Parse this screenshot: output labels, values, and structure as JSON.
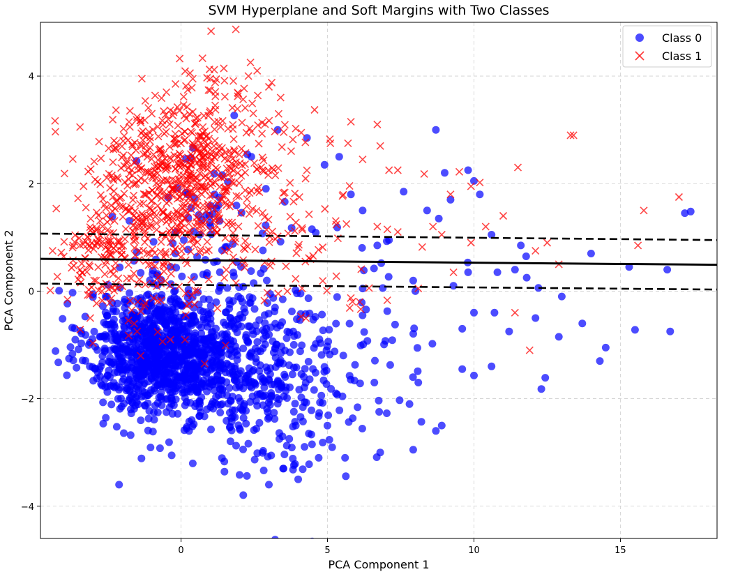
{
  "chart_data": {
    "type": "scatter",
    "title": "SVM Hyperplane and Soft Margins with Two Classes",
    "xlabel": "PCA Component 1",
    "ylabel": "PCA Component 2",
    "xlim": [
      -4.8,
      18.3
    ],
    "ylim": [
      -4.6,
      5.0
    ],
    "xticks": [
      0,
      5,
      10,
      15
    ],
    "yticks": [
      -4,
      -2,
      0,
      2,
      4
    ],
    "grid": true,
    "legend_position": "top-right",
    "hyperplane": {
      "x": [
        -4.8,
        18.3
      ],
      "y": [
        0.6,
        0.49
      ]
    },
    "margins": [
      {
        "x": [
          -4.8,
          18.3
        ],
        "y": [
          1.07,
          0.95
        ]
      },
      {
        "x": [
          -4.8,
          18.3
        ],
        "y": [
          0.14,
          0.03
        ]
      }
    ],
    "series": [
      {
        "name": "Class 0",
        "marker": "circle",
        "color": "#0000ff",
        "clusters": [
          {
            "center": [
              -0.8,
              -1.1
            ],
            "spread": [
              1.2,
              0.55
            ],
            "count": 900
          },
          {
            "center": [
              1.5,
              -1.4
            ],
            "spread": [
              1.3,
              0.75
            ],
            "count": 400
          },
          {
            "center": [
              3.8,
              -1.9
            ],
            "spread": [
              1.2,
              0.9
            ],
            "count": 140
          },
          {
            "center": [
              6.5,
              -0.8
            ],
            "spread": [
              2.2,
              1.0
            ],
            "count": 60
          },
          {
            "center": [
              0.8,
              0.8
            ],
            "spread": [
              1.2,
              0.9
            ],
            "count": 80
          }
        ],
        "points": [
          [
            8.7,
            3.0
          ],
          [
            17.2,
            1.45
          ],
          [
            17.4,
            1.48
          ],
          [
            16.6,
            0.4
          ],
          [
            15.3,
            0.45
          ],
          [
            14.0,
            0.7
          ],
          [
            13.0,
            -0.1
          ],
          [
            14.5,
            -1.05
          ],
          [
            14.3,
            -1.3
          ],
          [
            15.5,
            -0.72
          ],
          [
            16.7,
            -0.75
          ],
          [
            12.9,
            -0.85
          ],
          [
            12.1,
            -0.5
          ],
          [
            12.3,
            -1.82
          ],
          [
            13.7,
            -0.6
          ],
          [
            11.8,
            0.25
          ],
          [
            11.6,
            0.85
          ],
          [
            10.6,
            1.05
          ],
          [
            10.0,
            2.05
          ],
          [
            9.8,
            2.25
          ],
          [
            10.2,
            1.8
          ],
          [
            9.0,
            2.2
          ],
          [
            9.2,
            1.7
          ],
          [
            8.8,
            1.35
          ],
          [
            8.4,
            1.5
          ],
          [
            7.6,
            1.85
          ],
          [
            6.2,
            1.5
          ],
          [
            5.8,
            1.8
          ],
          [
            5.4,
            2.5
          ],
          [
            4.9,
            2.35
          ],
          [
            4.3,
            2.85
          ],
          [
            3.3,
            3.0
          ],
          [
            2.4,
            2.5
          ],
          [
            6.7,
            0.85
          ],
          [
            7.1,
            0.95
          ],
          [
            9.8,
            0.35
          ],
          [
            10.8,
            0.35
          ],
          [
            11.4,
            0.4
          ],
          [
            12.2,
            0.06
          ],
          [
            9.3,
            0.1
          ],
          [
            8.0,
            0.0
          ],
          [
            6.2,
            0.05
          ],
          [
            10.0,
            -0.4
          ],
          [
            9.6,
            -0.7
          ],
          [
            10.7,
            -0.4
          ],
          [
            11.2,
            -0.75
          ],
          [
            10.0,
            -1.57
          ],
          [
            9.6,
            -1.45
          ],
          [
            10.6,
            -1.4
          ],
          [
            8.9,
            -2.5
          ],
          [
            8.7,
            -2.6
          ],
          [
            6.8,
            -3.0
          ],
          [
            5.6,
            -3.1
          ],
          [
            7.8,
            -2.1
          ],
          [
            8.1,
            -1.7
          ],
          [
            4.7,
            -3.1
          ],
          [
            4.0,
            -3.5
          ],
          [
            3.0,
            -3.6
          ],
          [
            3.5,
            -3.3
          ],
          [
            6.6,
            -1.7
          ]
        ]
      },
      {
        "name": "Class 1",
        "marker": "x",
        "color": "#ff0000",
        "clusters": [
          {
            "center": [
              -0.5,
              1.9
            ],
            "spread": [
              1.4,
              0.8
            ],
            "count": 500
          },
          {
            "center": [
              1.2,
              2.6
            ],
            "spread": [
              1.3,
              0.8
            ],
            "count": 200
          },
          {
            "center": [
              -2.6,
              0.7
            ],
            "spread": [
              0.7,
              0.4
            ],
            "count": 110
          },
          {
            "center": [
              3.5,
              1.2
            ],
            "spread": [
              1.5,
              0.9
            ],
            "count": 90
          },
          {
            "center": [
              -0.8,
              0.0
            ],
            "spread": [
              1.4,
              0.5
            ],
            "count": 60
          }
        ],
        "points": [
          [
            13.3,
            2.9
          ],
          [
            13.4,
            2.9
          ],
          [
            17.0,
            1.75
          ],
          [
            15.8,
            1.5
          ],
          [
            15.6,
            0.85
          ],
          [
            12.9,
            0.5
          ],
          [
            12.1,
            0.75
          ],
          [
            11.5,
            2.3
          ],
          [
            11.0,
            1.4
          ],
          [
            10.4,
            1.2
          ],
          [
            10.2,
            2.02
          ],
          [
            9.9,
            1.95
          ],
          [
            9.5,
            2.22
          ],
          [
            9.2,
            1.8
          ],
          [
            8.6,
            1.2
          ],
          [
            8.9,
            1.05
          ],
          [
            8.3,
            2.18
          ],
          [
            7.4,
            2.25
          ],
          [
            7.1,
            2.25
          ],
          [
            6.7,
            3.1
          ],
          [
            6.8,
            2.7
          ],
          [
            6.2,
            2.45
          ],
          [
            5.8,
            3.15
          ],
          [
            5.7,
            2.75
          ],
          [
            5.1,
            2.75
          ],
          [
            9.3,
            0.35
          ],
          [
            8.1,
            0.05
          ],
          [
            6.1,
            -0.2
          ],
          [
            11.9,
            -1.1
          ],
          [
            11.4,
            -0.4
          ],
          [
            0.8,
            -1.35
          ],
          [
            -1.5,
            -0.75
          ],
          [
            2.6,
            4.1
          ],
          [
            2.3,
            4.0
          ],
          [
            1.0,
            3.95
          ],
          [
            0.4,
            3.95
          ],
          [
            -0.5,
            3.7
          ],
          [
            -1.0,
            3.3
          ],
          [
            3.0,
            3.8
          ],
          [
            12.5,
            0.9
          ],
          [
            7.4,
            1.1
          ],
          [
            9.9,
            0.9
          ],
          [
            6.7,
            1.2
          ],
          [
            3.4,
            3.6
          ],
          [
            -3.1,
            -0.5
          ]
        ]
      }
    ]
  }
}
